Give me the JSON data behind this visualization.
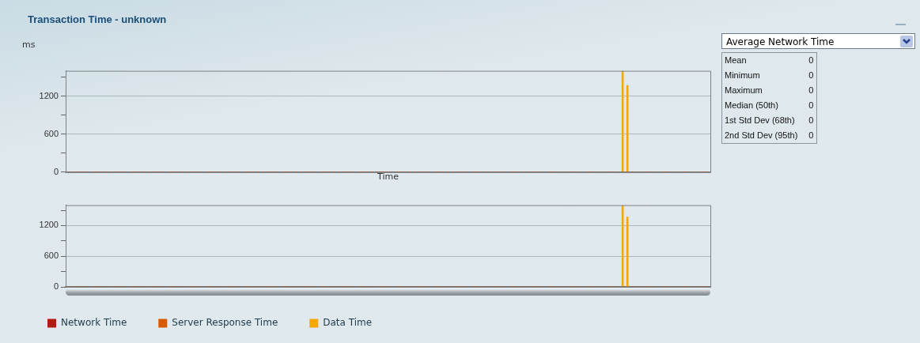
{
  "chart_data": [
    {
      "type": "bar",
      "title": "Transaction Time - unknown",
      "ylabel": "ms",
      "xlabel": "Time",
      "stacked": true,
      "grid": "y",
      "legend": false,
      "tick_labels": "y",
      "categories": [
        null,
        null,
        null,
        null,
        null,
        null,
        null,
        null,
        null,
        null,
        null,
        null,
        null,
        null,
        null,
        null,
        null,
        null,
        null,
        null,
        null,
        null,
        null,
        null,
        null,
        null,
        null,
        null,
        null,
        null,
        null,
        null,
        null,
        null,
        null,
        null,
        null,
        null,
        null,
        null,
        null,
        null,
        null,
        null,
        null,
        null,
        null,
        null,
        null,
        null,
        null,
        null,
        null,
        null,
        null,
        null,
        null,
        null,
        null,
        null,
        null,
        null,
        null,
        null,
        null,
        null,
        null,
        null,
        null,
        null,
        null,
        null,
        null,
        null,
        null,
        null,
        null,
        null,
        null,
        null,
        null,
        null,
        null,
        null,
        null,
        null,
        null,
        null,
        null,
        null,
        null,
        null,
        null,
        null,
        null,
        null,
        null,
        null,
        null,
        null,
        null,
        null,
        null,
        null,
        null,
        null,
        null,
        null,
        null,
        null,
        null,
        null,
        null,
        null,
        null,
        null,
        null,
        null,
        null,
        null,
        null,
        null,
        null,
        null,
        null,
        null,
        null,
        null,
        null,
        null,
        null,
        null,
        null,
        null,
        null,
        null
      ],
      "ylim": [
        0,
        1600
      ],
      "yticks": [
        0,
        {
          "value": 300,
          "label": null
        },
        600,
        {
          "value": 900,
          "label": null
        },
        1200,
        {
          "value": 1500,
          "label": null
        }
      ],
      "series": [
        {
          "color": "#b01a10",
          "values": [
            0,
            0,
            0,
            0,
            0,
            0,
            0,
            0,
            0,
            0,
            0,
            0,
            0,
            0,
            0,
            0,
            0,
            0,
            0,
            0,
            0,
            0,
            0,
            0,
            0,
            0,
            0,
            0,
            0,
            0,
            0,
            0,
            0,
            0,
            0,
            0,
            0,
            0,
            0,
            0,
            0,
            0,
            0,
            0,
            0,
            0,
            0,
            0,
            0,
            0,
            0,
            0,
            0,
            0,
            0,
            0,
            0,
            0,
            0,
            0,
            0,
            0,
            0,
            0,
            0,
            0,
            0,
            0,
            0,
            0,
            0,
            0,
            0,
            0,
            0,
            0,
            0,
            0,
            0,
            0,
            0,
            0,
            0,
            0,
            0,
            0,
            0,
            0,
            0,
            0,
            0,
            0,
            0,
            0,
            0,
            0,
            0,
            0,
            0,
            0,
            0,
            0,
            0,
            0,
            0,
            0,
            0,
            0,
            0,
            0,
            0,
            0,
            0,
            0,
            0,
            0,
            0,
            0,
            0,
            0,
            0,
            0,
            0,
            0,
            0,
            0,
            0,
            0,
            0,
            0,
            0,
            0,
            0,
            0,
            0,
            0
          ]
        },
        {
          "color": "#d85a00",
          "values": [
            0,
            0,
            0,
            0,
            0,
            0,
            0,
            0,
            0,
            0,
            0,
            0,
            0,
            0,
            0,
            0,
            0,
            0,
            0,
            0,
            0,
            0,
            0,
            0,
            0,
            0,
            0,
            0,
            0,
            0,
            0,
            0,
            0,
            0,
            0,
            0,
            0,
            0,
            0,
            0,
            0,
            0,
            0,
            0,
            0,
            0,
            0,
            0,
            0,
            0,
            0,
            0,
            0,
            0,
            0,
            0,
            0,
            0,
            0,
            0,
            0,
            0,
            0,
            0,
            0,
            0,
            0,
            0,
            0,
            0,
            0,
            0,
            0,
            0,
            0,
            0,
            0,
            0,
            0,
            0,
            0,
            0,
            0,
            0,
            0,
            0,
            0,
            0,
            0,
            0,
            0,
            0,
            0,
            0,
            0,
            0,
            0,
            0,
            0,
            0,
            0,
            0,
            0,
            0,
            0,
            0,
            0,
            0,
            0,
            0,
            0,
            0,
            0,
            0,
            0,
            0,
            0,
            0,
            0,
            0,
            0,
            0,
            0,
            0,
            0,
            0,
            0,
            0,
            0,
            0,
            0,
            0,
            0,
            0,
            0,
            0
          ]
        },
        {
          "color": "#f2a900",
          "values": [
            0,
            0,
            0,
            0,
            0,
            0,
            0,
            0,
            0,
            0,
            0,
            0,
            0,
            0,
            0,
            0,
            0,
            0,
            0,
            0,
            0,
            0,
            0,
            0,
            0,
            0,
            0,
            0,
            0,
            0,
            0,
            0,
            0,
            0,
            0,
            0,
            0,
            0,
            0,
            0,
            0,
            0,
            0,
            0,
            0,
            0,
            0,
            0,
            0,
            0,
            0,
            0,
            0,
            0,
            0,
            0,
            0,
            0,
            0,
            0,
            0,
            0,
            0,
            0,
            0,
            0,
            0,
            0,
            0,
            0,
            0,
            0,
            0,
            0,
            0,
            0,
            0,
            0,
            0,
            0,
            0,
            0,
            0,
            0,
            0,
            0,
            0,
            0,
            0,
            0,
            0,
            0,
            0,
            0,
            0,
            0,
            0,
            0,
            0,
            0,
            0,
            0,
            0,
            0,
            0,
            0,
            0,
            0,
            0,
            0,
            0,
            0,
            0,
            0,
            0,
            0,
            0,
            1600,
            1370,
            0,
            0,
            0,
            0,
            0,
            0,
            0,
            0,
            0,
            0,
            0,
            0,
            0,
            0,
            0,
            0,
            0
          ]
        }
      ]
    },
    {
      "type": "bar",
      "stacked": true,
      "grid": "y",
      "legend": "bottom",
      "tick_labels": "y",
      "categories": [
        null,
        null,
        null,
        null,
        null,
        null,
        null,
        null,
        null,
        null,
        null,
        null,
        null,
        null,
        null,
        null,
        null,
        null,
        null,
        null,
        null,
        null,
        null,
        null,
        null,
        null,
        null,
        null,
        null,
        null,
        null,
        null,
        null,
        null,
        null,
        null,
        null,
        null,
        null,
        null,
        null,
        null,
        null,
        null,
        null,
        null,
        null,
        null,
        null,
        null,
        null,
        null,
        null,
        null,
        null,
        null,
        null,
        null,
        null,
        null,
        null,
        null,
        null,
        null,
        null,
        null,
        null,
        null,
        null,
        null,
        null,
        null,
        null,
        null,
        null,
        null,
        null,
        null,
        null,
        null,
        null,
        null,
        null,
        null,
        null,
        null,
        null,
        null,
        null,
        null,
        null,
        null,
        null,
        null,
        null,
        null,
        null,
        null,
        null,
        null,
        null,
        null,
        null,
        null,
        null,
        null,
        null,
        null,
        null,
        null,
        null,
        null,
        null,
        null,
        null,
        null,
        null,
        null,
        null,
        null,
        null,
        null,
        null,
        null,
        null,
        null,
        null,
        null,
        null,
        null,
        null,
        null,
        null,
        null,
        null,
        null
      ],
      "ylim": [
        0,
        1600
      ],
      "yticks": [
        0,
        {
          "value": 300,
          "label": null
        },
        600,
        {
          "value": 900,
          "label": null
        },
        1200,
        {
          "value": 1500,
          "label": null
        }
      ],
      "series": [
        {
          "name": "Network Time",
          "color": "#b01a10",
          "values": [
            0,
            0,
            0,
            0,
            0,
            0,
            0,
            0,
            0,
            0,
            0,
            0,
            0,
            0,
            0,
            0,
            0,
            0,
            0,
            0,
            0,
            0,
            0,
            0,
            0,
            0,
            0,
            0,
            0,
            0,
            0,
            0,
            0,
            0,
            0,
            0,
            0,
            0,
            0,
            0,
            0,
            0,
            0,
            0,
            0,
            0,
            0,
            0,
            0,
            0,
            0,
            0,
            0,
            0,
            0,
            0,
            0,
            0,
            0,
            0,
            0,
            0,
            0,
            0,
            0,
            0,
            0,
            0,
            0,
            0,
            0,
            0,
            0,
            0,
            0,
            0,
            0,
            0,
            0,
            0,
            0,
            0,
            0,
            0,
            0,
            0,
            0,
            0,
            0,
            0,
            0,
            0,
            0,
            0,
            0,
            0,
            0,
            0,
            0,
            0,
            0,
            0,
            0,
            0,
            0,
            0,
            0,
            0,
            0,
            0,
            0,
            0,
            0,
            0,
            0,
            0,
            0,
            0,
            0,
            0,
            0,
            0,
            0,
            0,
            0,
            0,
            0,
            0,
            0,
            0,
            0,
            0,
            0,
            0,
            0,
            0
          ]
        },
        {
          "name": "Server Response Time",
          "color": "#d85a00",
          "values": [
            0,
            0,
            0,
            0,
            0,
            0,
            0,
            0,
            0,
            0,
            0,
            0,
            0,
            0,
            0,
            0,
            0,
            0,
            0,
            0,
            0,
            0,
            0,
            0,
            0,
            0,
            0,
            0,
            0,
            0,
            0,
            0,
            0,
            0,
            0,
            0,
            0,
            0,
            0,
            0,
            0,
            0,
            0,
            0,
            0,
            0,
            0,
            0,
            0,
            0,
            0,
            0,
            0,
            0,
            0,
            0,
            0,
            0,
            0,
            0,
            0,
            0,
            0,
            0,
            0,
            0,
            0,
            0,
            0,
            0,
            0,
            0,
            0,
            0,
            0,
            0,
            0,
            0,
            0,
            0,
            0,
            0,
            0,
            0,
            0,
            0,
            0,
            0,
            0,
            0,
            0,
            0,
            0,
            0,
            0,
            0,
            0,
            0,
            0,
            0,
            0,
            0,
            0,
            0,
            0,
            0,
            0,
            0,
            0,
            0,
            0,
            0,
            0,
            0,
            0,
            0,
            0,
            0,
            0,
            0,
            0,
            0,
            0,
            0,
            0,
            0,
            0,
            0,
            0,
            0,
            0,
            0,
            0,
            0,
            0,
            0
          ]
        },
        {
          "name": "Data Time",
          "color": "#f2a900",
          "values": [
            0,
            0,
            0,
            0,
            0,
            0,
            0,
            0,
            0,
            0,
            0,
            0,
            0,
            0,
            0,
            0,
            0,
            0,
            0,
            0,
            0,
            0,
            0,
            0,
            0,
            0,
            0,
            0,
            0,
            0,
            0,
            0,
            0,
            0,
            0,
            0,
            0,
            0,
            0,
            0,
            0,
            0,
            0,
            0,
            0,
            0,
            0,
            0,
            0,
            0,
            0,
            0,
            0,
            0,
            0,
            0,
            0,
            0,
            0,
            0,
            0,
            0,
            0,
            0,
            0,
            0,
            0,
            0,
            0,
            0,
            0,
            0,
            0,
            0,
            0,
            0,
            0,
            0,
            0,
            0,
            0,
            0,
            0,
            0,
            0,
            0,
            0,
            0,
            0,
            0,
            0,
            0,
            0,
            0,
            0,
            0,
            0,
            0,
            0,
            0,
            0,
            0,
            0,
            0,
            0,
            0,
            0,
            0,
            0,
            0,
            0,
            0,
            0,
            0,
            0,
            0,
            0,
            1600,
            1370,
            0,
            0,
            0,
            0,
            0,
            0,
            0,
            0,
            0,
            0,
            0,
            0,
            0,
            0,
            0,
            0,
            0
          ]
        }
      ]
    },
    {
      "type": "other",
      "title": "Average Network Time",
      "data_labels": true,
      "categories": [
        "Mean",
        "Minimum",
        "Maximum",
        "Median (50th)",
        "1st Std Dev (68th)",
        "2nd Std Dev (95th)"
      ],
      "values": [
        0,
        0,
        0,
        0,
        0,
        0
      ]
    }
  ]
}
